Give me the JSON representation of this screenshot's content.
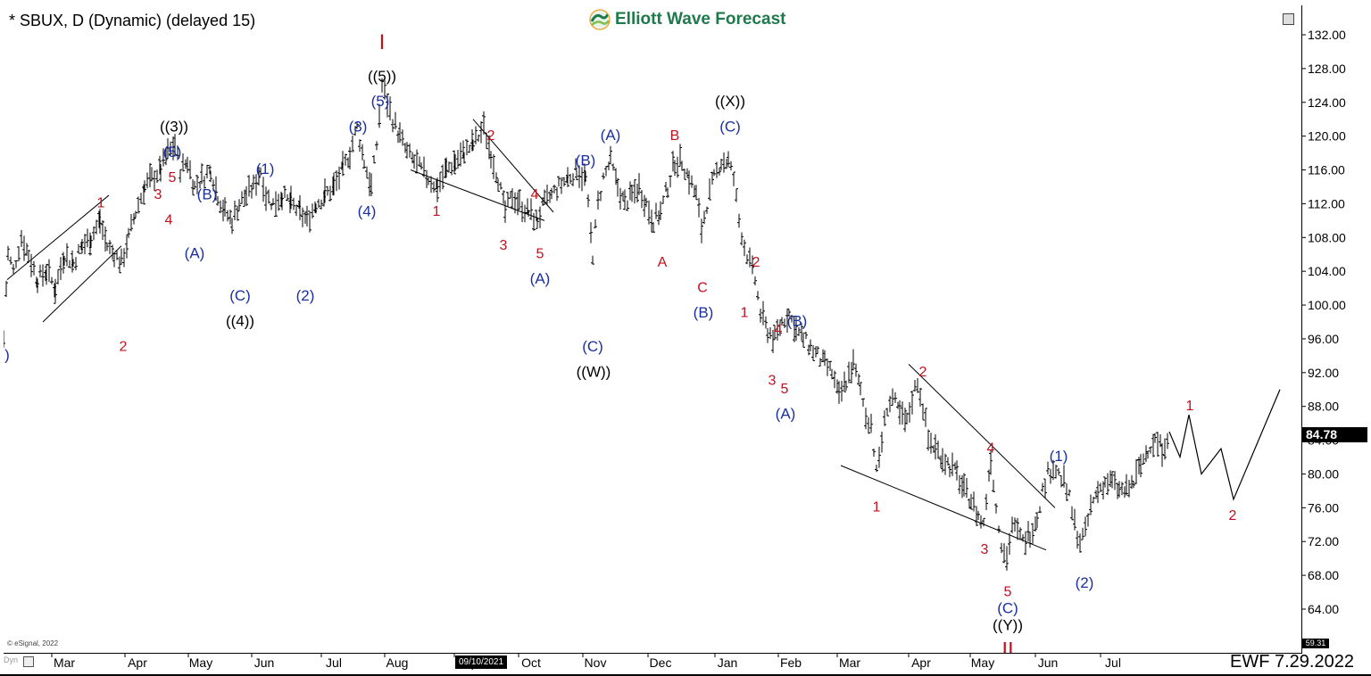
{
  "header": {
    "title": "* SBUX, D (Dynamic) (delayed 15)",
    "logo_text": "Elliott Wave Forecast",
    "logo_icon": "elliott-wave-forecast-logo"
  },
  "footer": {
    "ewf_date": "EWF 7.29.2022",
    "copyright": "© eSignal, 2022",
    "dyn_label": "Dyn",
    "date_cursor": "09/10/2021"
  },
  "colors": {
    "background": "#ffffff",
    "bars": "#000000",
    "red_label": "#c0111f",
    "blue_label": "#1a2fa0",
    "black_label": "#000000",
    "logo_green": "#1e7a4a"
  },
  "chart_data": {
    "type": "ohlc",
    "x_ticks": [
      "Mar",
      "Apr",
      "May",
      "Jun",
      "Jul",
      "Aug",
      "Sep",
      "Oct",
      "Nov",
      "Dec",
      "Jan",
      "Feb",
      "Mar",
      "Apr",
      "May",
      "Jun",
      "Jul"
    ],
    "y_ticks": [
      64,
      68,
      72,
      76,
      80,
      84,
      88,
      92,
      96,
      100,
      104,
      108,
      112,
      116,
      120,
      124,
      128,
      132
    ],
    "ylim": [
      60,
      134
    ],
    "last_price": "84.78",
    "axis_low": "59.31",
    "price_path": [
      [
        0,
        96
      ],
      [
        5,
        106
      ],
      [
        11,
        104
      ],
      [
        20,
        108
      ],
      [
        28,
        106
      ],
      [
        38,
        103
      ],
      [
        48,
        104
      ],
      [
        58,
        102
      ],
      [
        68,
        106
      ],
      [
        78,
        105
      ],
      [
        88,
        107
      ],
      [
        98,
        108
      ],
      [
        108,
        110
      ],
      [
        116,
        107
      ],
      [
        124,
        106
      ],
      [
        132,
        105
      ],
      [
        140,
        108
      ],
      [
        148,
        111
      ],
      [
        158,
        114
      ],
      [
        166,
        115
      ],
      [
        176,
        116
      ],
      [
        184,
        118
      ],
      [
        192,
        119
      ],
      [
        198,
        116
      ],
      [
        206,
        117
      ],
      [
        214,
        114
      ],
      [
        222,
        115
      ],
      [
        232,
        116
      ],
      [
        240,
        113
      ],
      [
        248,
        111
      ],
      [
        256,
        110
      ],
      [
        264,
        112
      ],
      [
        272,
        113
      ],
      [
        280,
        114
      ],
      [
        288,
        116
      ],
      [
        294,
        113
      ],
      [
        302,
        112
      ],
      [
        312,
        113
      ],
      [
        322,
        112
      ],
      [
        332,
        111
      ],
      [
        340,
        110
      ],
      [
        350,
        112
      ],
      [
        360,
        113
      ],
      [
        370,
        114
      ],
      [
        380,
        116
      ],
      [
        388,
        118
      ],
      [
        396,
        121
      ],
      [
        404,
        117
      ],
      [
        412,
        114
      ],
      [
        418,
        119
      ],
      [
        424,
        126
      ],
      [
        430,
        124
      ],
      [
        436,
        122
      ],
      [
        444,
        120
      ],
      [
        452,
        118
      ],
      [
        460,
        117
      ],
      [
        468,
        116
      ],
      [
        476,
        115
      ],
      [
        486,
        114
      ],
      [
        496,
        116
      ],
      [
        506,
        117
      ],
      [
        516,
        118
      ],
      [
        526,
        119
      ],
      [
        538,
        121
      ],
      [
        546,
        118
      ],
      [
        554,
        115
      ],
      [
        562,
        111
      ],
      [
        570,
        113
      ],
      [
        578,
        112
      ],
      [
        588,
        111
      ],
      [
        598,
        110
      ],
      [
        606,
        112
      ],
      [
        614,
        113
      ],
      [
        622,
        114
      ],
      [
        632,
        115
      ],
      [
        642,
        116
      ],
      [
        652,
        115
      ],
      [
        660,
        106
      ],
      [
        666,
        112
      ],
      [
        672,
        115
      ],
      [
        680,
        117
      ],
      [
        688,
        114
      ],
      [
        696,
        112
      ],
      [
        704,
        113
      ],
      [
        712,
        114
      ],
      [
        720,
        112
      ],
      [
        728,
        110
      ],
      [
        736,
        111
      ],
      [
        744,
        114
      ],
      [
        752,
        117
      ],
      [
        760,
        117
      ],
      [
        768,
        115
      ],
      [
        776,
        113
      ],
      [
        782,
        109
      ],
      [
        788,
        112
      ],
      [
        796,
        115
      ],
      [
        804,
        117
      ],
      [
        812,
        117
      ],
      [
        818,
        115
      ],
      [
        824,
        110
      ],
      [
        830,
        107
      ],
      [
        836,
        105
      ],
      [
        842,
        103
      ],
      [
        848,
        99
      ],
      [
        856,
        97
      ],
      [
        864,
        96
      ],
      [
        872,
        98
      ],
      [
        880,
        99
      ],
      [
        888,
        97
      ],
      [
        896,
        96
      ],
      [
        904,
        95
      ],
      [
        912,
        94
      ],
      [
        920,
        93
      ],
      [
        928,
        92
      ],
      [
        936,
        89
      ],
      [
        944,
        91
      ],
      [
        952,
        93
      ],
      [
        960,
        90
      ],
      [
        966,
        87
      ],
      [
        972,
        86
      ],
      [
        978,
        80
      ],
      [
        984,
        84
      ],
      [
        990,
        88
      ],
      [
        996,
        89
      ],
      [
        1004,
        87
      ],
      [
        1012,
        86
      ],
      [
        1018,
        89
      ],
      [
        1024,
        91
      ],
      [
        1030,
        88
      ],
      [
        1036,
        84
      ],
      [
        1044,
        83
      ],
      [
        1052,
        82
      ],
      [
        1060,
        81
      ],
      [
        1068,
        80
      ],
      [
        1076,
        78
      ],
      [
        1084,
        77
      ],
      [
        1092,
        75
      ],
      [
        1098,
        74
      ],
      [
        1106,
        82
      ],
      [
        1112,
        76
      ],
      [
        1118,
        72
      ],
      [
        1124,
        70
      ],
      [
        1130,
        74
      ],
      [
        1136,
        73
      ],
      [
        1142,
        72
      ],
      [
        1150,
        73
      ],
      [
        1158,
        75
      ],
      [
        1164,
        78
      ],
      [
        1170,
        80
      ],
      [
        1176,
        81
      ],
      [
        1182,
        80
      ],
      [
        1188,
        79
      ],
      [
        1194,
        77
      ],
      [
        1200,
        74
      ],
      [
        1206,
        72
      ],
      [
        1212,
        73
      ],
      [
        1218,
        76
      ],
      [
        1226,
        78
      ],
      [
        1234,
        79
      ],
      [
        1242,
        79
      ],
      [
        1250,
        78
      ],
      [
        1258,
        78
      ],
      [
        1266,
        79
      ],
      [
        1274,
        81
      ],
      [
        1282,
        83
      ],
      [
        1290,
        84
      ],
      [
        1298,
        83
      ],
      [
        1306,
        85
      ]
    ],
    "projection": [
      [
        1306,
        85
      ],
      [
        1318,
        82
      ],
      [
        1328,
        87
      ],
      [
        1342,
        80
      ],
      [
        1364,
        83
      ],
      [
        1378,
        77
      ],
      [
        1430,
        90
      ]
    ],
    "trendlines": [
      {
        "p1": [
          4,
          103
        ],
        "p2": [
          118,
          113
        ]
      },
      {
        "p1": [
          44,
          98
        ],
        "p2": [
          132,
          107
        ]
      },
      {
        "p1": [
          456,
          116
        ],
        "p2": [
          606,
          110
        ]
      },
      {
        "p1": [
          526,
          122
        ],
        "p2": [
          616,
          111
        ]
      },
      {
        "p1": [
          938,
          81
        ],
        "p2": [
          1168,
          71
        ]
      },
      {
        "p1": [
          1014,
          93
        ],
        "p2": [
          1178,
          76
        ]
      }
    ],
    "labels": [
      {
        "t": "I",
        "x": 424,
        "y": 131,
        "c": "red",
        "s": 24
      },
      {
        "t": "((5))",
        "x": 424,
        "y": 127,
        "c": "black",
        "s": 17
      },
      {
        "t": "(5)",
        "x": 422,
        "y": 124,
        "c": "blue",
        "s": 17
      },
      {
        "t": "((3))",
        "x": 191,
        "y": 121,
        "c": "black",
        "s": 17
      },
      {
        "t": "(5)",
        "x": 189,
        "y": 118,
        "c": "blue",
        "s": 17
      },
      {
        "t": "5",
        "x": 189,
        "y": 115,
        "c": "red",
        "s": 16
      },
      {
        "t": "3",
        "x": 173,
        "y": 113,
        "c": "red",
        "s": 16
      },
      {
        "t": "4",
        "x": 185,
        "y": 110,
        "c": "red",
        "s": 16
      },
      {
        "t": "(B)",
        "x": 228,
        "y": 113,
        "c": "blue",
        "s": 17
      },
      {
        "t": "(A)",
        "x": 214,
        "y": 106,
        "c": "blue",
        "s": 17
      },
      {
        "t": "(C)",
        "x": 265,
        "y": 101,
        "c": "blue",
        "s": 17
      },
      {
        "t": "((4))",
        "x": 265,
        "y": 98,
        "c": "black",
        "s": 17
      },
      {
        "t": "(1)",
        "x": 293,
        "y": 116,
        "c": "blue",
        "s": 17
      },
      {
        "t": "(2)",
        "x": 338,
        "y": 101,
        "c": "blue",
        "s": 17
      },
      {
        "t": "(3)",
        "x": 397,
        "y": 121,
        "c": "blue",
        "s": 17
      },
      {
        "t": "(4)",
        "x": 407,
        "y": 111,
        "c": "blue",
        "s": 17
      },
      {
        "t": "1",
        "x": 109,
        "y": 112,
        "c": "red",
        "s": 16
      },
      {
        "t": "2",
        "x": 134,
        "y": 95,
        "c": "red",
        "s": 16
      },
      {
        "t": "2",
        "x": 546,
        "y": 120,
        "c": "red",
        "s": 16
      },
      {
        "t": "1",
        "x": 485,
        "y": 111,
        "c": "red",
        "s": 16
      },
      {
        "t": "3",
        "x": 560,
        "y": 107,
        "c": "red",
        "s": 16
      },
      {
        "t": "4",
        "x": 595,
        "y": 113,
        "c": "red",
        "s": 16
      },
      {
        "t": "5",
        "x": 601,
        "y": 106,
        "c": "red",
        "s": 16
      },
      {
        "t": "(A)",
        "x": 601,
        "y": 103,
        "c": "blue",
        "s": 17
      },
      {
        "t": "(B)",
        "x": 652,
        "y": 117,
        "c": "blue",
        "s": 17
      },
      {
        "t": "(C)",
        "x": 660,
        "y": 95,
        "c": "blue",
        "s": 17
      },
      {
        "t": "((W))",
        "x": 661,
        "y": 92,
        "c": "black",
        "s": 17
      },
      {
        "t": "(A)",
        "x": 680,
        "y": 120,
        "c": "blue",
        "s": 17
      },
      {
        "t": "B",
        "x": 752,
        "y": 120,
        "c": "red",
        "s": 16
      },
      {
        "t": "A",
        "x": 738,
        "y": 105,
        "c": "red",
        "s": 16
      },
      {
        "t": "C",
        "x": 783,
        "y": 102,
        "c": "red",
        "s": 16
      },
      {
        "t": "(B)",
        "x": 784,
        "y": 99,
        "c": "blue",
        "s": 17
      },
      {
        "t": "((X))",
        "x": 814,
        "y": 124,
        "c": "black",
        "s": 17
      },
      {
        "t": "(C)",
        "x": 814,
        "y": 121,
        "c": "blue",
        "s": 17
      },
      {
        "t": "2",
        "x": 843,
        "y": 105,
        "c": "red",
        "s": 16
      },
      {
        "t": "1",
        "x": 830,
        "y": 99,
        "c": "red",
        "s": 16
      },
      {
        "t": "4",
        "x": 868,
        "y": 97,
        "c": "red",
        "s": 16
      },
      {
        "t": "(B)",
        "x": 889,
        "y": 98,
        "c": "blue",
        "s": 17
      },
      {
        "t": "3",
        "x": 861,
        "y": 91,
        "c": "red",
        "s": 16
      },
      {
        "t": "5",
        "x": 875,
        "y": 90,
        "c": "red",
        "s": 16
      },
      {
        "t": "(A)",
        "x": 876,
        "y": 87,
        "c": "blue",
        "s": 17
      },
      {
        "t": "2",
        "x": 1030,
        "y": 92,
        "c": "red",
        "s": 16
      },
      {
        "t": "1",
        "x": 978,
        "y": 76,
        "c": "red",
        "s": 16
      },
      {
        "t": "4",
        "x": 1106,
        "y": 83,
        "c": "red",
        "s": 16
      },
      {
        "t": "3",
        "x": 1099,
        "y": 71,
        "c": "red",
        "s": 16
      },
      {
        "t": "5",
        "x": 1125,
        "y": 66,
        "c": "red",
        "s": 16
      },
      {
        "t": "(C)",
        "x": 1125,
        "y": 64,
        "c": "blue",
        "s": 17
      },
      {
        "t": "((Y))",
        "x": 1125,
        "y": 62,
        "c": "black",
        "s": 17
      },
      {
        "t": "II",
        "x": 1125,
        "y": 59,
        "c": "red",
        "s": 24
      },
      {
        "t": "(1)",
        "x": 1182,
        "y": 82,
        "c": "blue",
        "s": 17
      },
      {
        "t": "(2)",
        "x": 1211,
        "y": 67,
        "c": "blue",
        "s": 17
      },
      {
        "t": "1",
        "x": 1329,
        "y": 88,
        "c": "red",
        "s": 16
      },
      {
        "t": "2",
        "x": 1377,
        "y": 75,
        "c": "red",
        "s": 16
      },
      {
        "t": ")",
        "x": 4,
        "y": 94,
        "c": "blue",
        "s": 17
      }
    ]
  }
}
